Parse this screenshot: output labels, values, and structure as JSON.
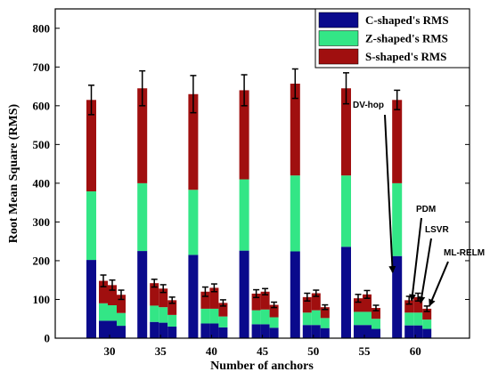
{
  "chart_data": {
    "type": "bar",
    "xlabel": "Number of anchors",
    "ylabel": "Root Mean Square (RMS)",
    "ylim": [
      0,
      850
    ],
    "yticks": [
      0,
      100,
      200,
      300,
      400,
      500,
      600,
      700,
      800
    ],
    "categories": [
      "30",
      "35",
      "40",
      "45",
      "50",
      "55",
      "60"
    ],
    "stacking": "stacked (cumulative)",
    "methods": [
      "DV-hop",
      "PDM",
      "LSVR",
      "ML-RELM"
    ],
    "series": [
      {
        "name": "C-shaped's RMS",
        "color": "#0a0a8c"
      },
      {
        "name": "Z-shaped's RMS",
        "color": "#33e686"
      },
      {
        "name": "S-shaped's RMS",
        "color": "#a00f0f"
      }
    ],
    "stacks": [
      {
        "category": "30",
        "bars": [
          {
            "method": "DV-hop",
            "values": [
              202,
              177,
              236
            ],
            "error": 38
          },
          {
            "method": "PDM",
            "values": [
              45,
              45,
              58
            ],
            "error": 15
          },
          {
            "method": "LSVR",
            "values": [
              45,
              40,
              52
            ],
            "error": 13
          },
          {
            "method": "ML-RELM",
            "values": [
              32,
              33,
              47
            ],
            "error": 12
          }
        ]
      },
      {
        "category": "35",
        "bars": [
          {
            "method": "DV-hop",
            "values": [
              225,
              175,
              245
            ],
            "error": 45
          },
          {
            "method": "PDM",
            "values": [
              42,
              42,
              58
            ],
            "error": 10
          },
          {
            "method": "LSVR",
            "values": [
              40,
              40,
              48
            ],
            "error": 10
          },
          {
            "method": "ML-RELM",
            "values": [
              30,
              30,
              38
            ],
            "error": 8
          }
        ]
      },
      {
        "category": "40",
        "bars": [
          {
            "method": "DV-hop",
            "values": [
              215,
              168,
              247
            ],
            "error": 48
          },
          {
            "method": "PDM",
            "values": [
              38,
              38,
              44
            ],
            "error": 12
          },
          {
            "method": "LSVR",
            "values": [
              38,
              38,
              54
            ],
            "error": 10
          },
          {
            "method": "ML-RELM",
            "values": [
              28,
              28,
              35
            ],
            "error": 8
          }
        ]
      },
      {
        "category": "45",
        "bars": [
          {
            "method": "DV-hop",
            "values": [
              226,
              184,
              230
            ],
            "error": 40
          },
          {
            "method": "PDM",
            "values": [
              36,
              36,
              43
            ],
            "error": 10
          },
          {
            "method": "LSVR",
            "values": [
              36,
              38,
              46
            ],
            "error": 8
          },
          {
            "method": "ML-RELM",
            "values": [
              27,
              27,
              32
            ],
            "error": 7
          }
        ]
      },
      {
        "category": "50",
        "bars": [
          {
            "method": "DV-hop",
            "values": [
              224,
              196,
              237
            ],
            "error": 38
          },
          {
            "method": "PDM",
            "values": [
              34,
              32,
              40
            ],
            "error": 10
          },
          {
            "method": "LSVR",
            "values": [
              34,
              38,
              44
            ],
            "error": 8
          },
          {
            "method": "ML-RELM",
            "values": [
              26,
              26,
              28
            ],
            "error": 6
          }
        ]
      },
      {
        "category": "55",
        "bars": [
          {
            "method": "DV-hop",
            "values": [
              236,
              184,
              225
            ],
            "error": 40
          },
          {
            "method": "PDM",
            "values": [
              34,
              34,
              35
            ],
            "error": 10
          },
          {
            "method": "LSVR",
            "values": [
              34,
              34,
              45
            ],
            "error": 10
          },
          {
            "method": "ML-RELM",
            "values": [
              24,
              26,
              28
            ],
            "error": 7
          }
        ]
      },
      {
        "category": "60",
        "bars": [
          {
            "method": "DV-hop",
            "values": [
              212,
              188,
              215
            ],
            "error": 25
          },
          {
            "method": "PDM",
            "values": [
              33,
              33,
              32
            ],
            "error": 10
          },
          {
            "method": "LSVR",
            "values": [
              33,
              33,
              40
            ],
            "error": 10
          },
          {
            "method": "ML-RELM",
            "values": [
              24,
              24,
              28
            ],
            "error": 7
          }
        ]
      }
    ],
    "annotations": [
      {
        "text": "DV-hop",
        "category": "60",
        "method": "DV-hop"
      },
      {
        "text": "PDM",
        "category": "60",
        "method": "PDM"
      },
      {
        "text": "LSVR",
        "category": "60",
        "method": "LSVR"
      },
      {
        "text": "ML-RELM",
        "category": "60",
        "method": "ML-RELM"
      }
    ],
    "legend_position": "top-right",
    "grid": false
  }
}
